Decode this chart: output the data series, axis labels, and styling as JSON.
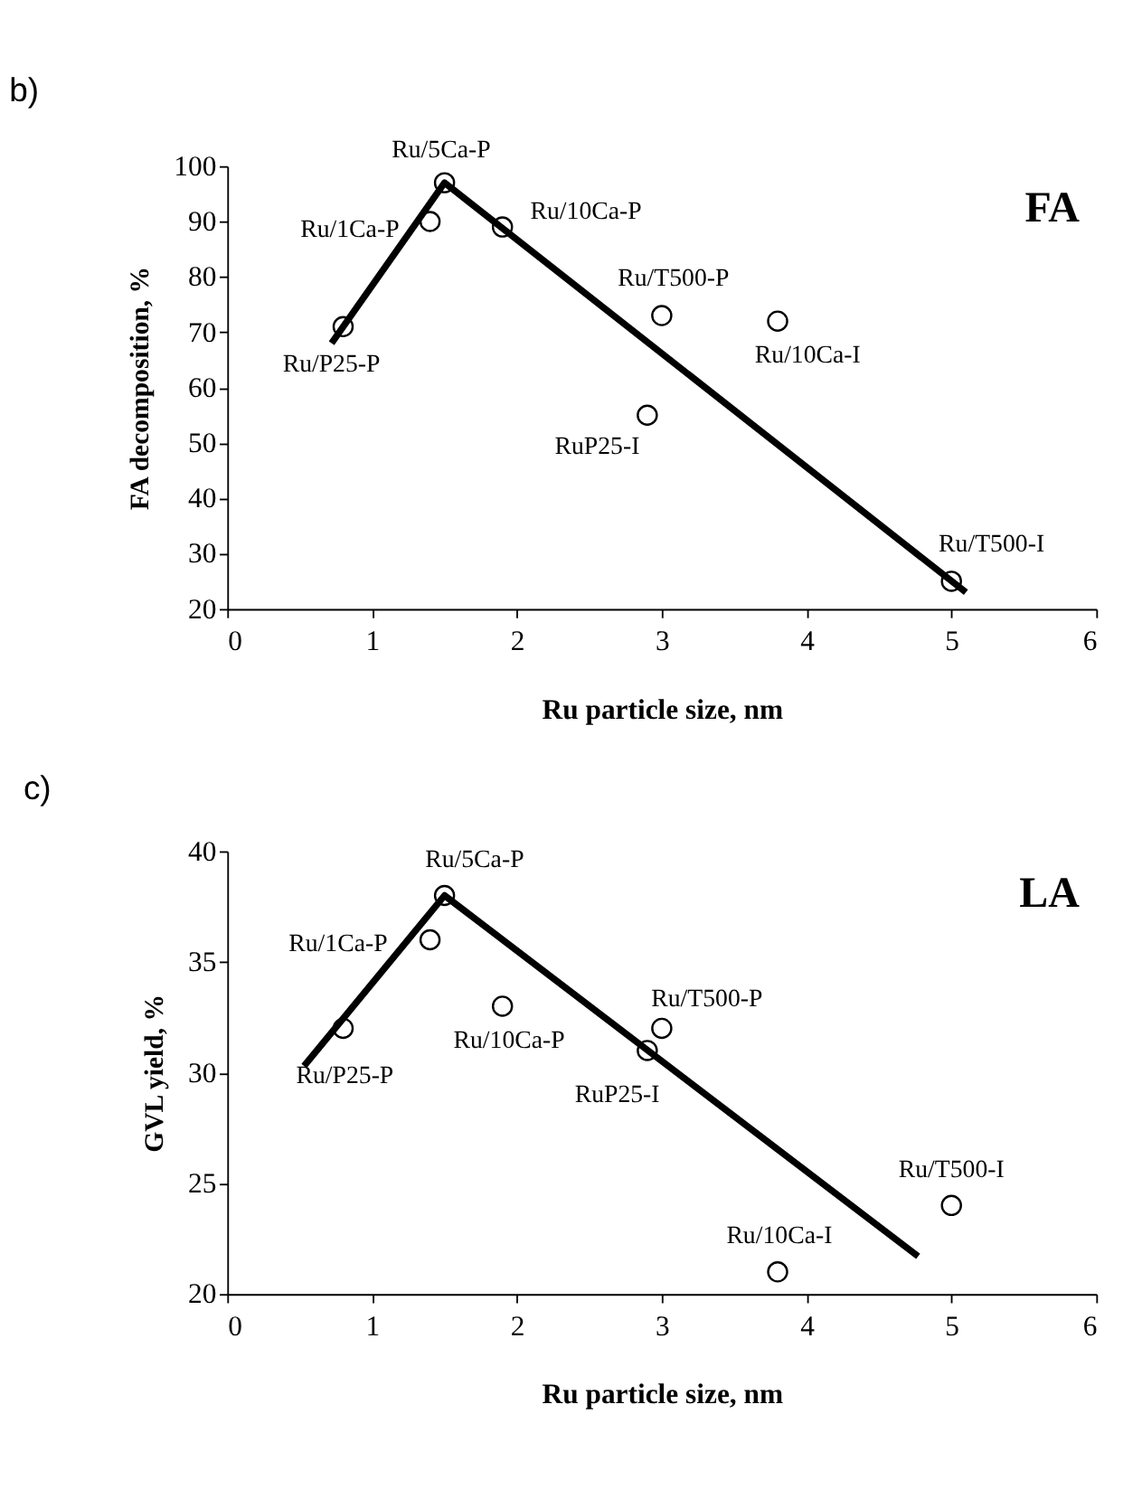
{
  "chart_data": [
    {
      "type": "scatter",
      "title": "b)",
      "xlabel": "Ru particle size, nm",
      "ylabel": "FA decomposition, %",
      "xlim": [
        0,
        6
      ],
      "xticks": [
        0,
        1,
        2,
        3,
        4,
        5,
        6
      ],
      "ylim": [
        20,
        100
      ],
      "yticks": [
        20,
        30,
        40,
        50,
        60,
        70,
        80,
        90,
        100
      ],
      "grid": false,
      "series": [
        {
          "type": "scatter",
          "marker": "circle",
          "color": "#000000",
          "x": [
            0.8,
            1.4,
            1.5,
            1.9,
            3.0,
            2.9,
            3.8,
            5.0
          ],
          "values": [
            71,
            90,
            97,
            89,
            73,
            55,
            72,
            25
          ]
        },
        {
          "type": "line",
          "marker": "none",
          "line_style": "solid",
          "color": "#000000",
          "x": [
            0.72,
            1.5,
            5.1
          ],
          "values": [
            68,
            97,
            23
          ]
        }
      ],
      "annotations": [
        "FA",
        {
          "text": "Ru/P25-P",
          "x": 0.8,
          "y": 71
        },
        {
          "text": "Ru/1Ca-P",
          "x": 1.4,
          "y": 90
        },
        {
          "text": "Ru/5Ca-P",
          "x": 1.5,
          "y": 97
        },
        {
          "text": "Ru/10Ca-P",
          "x": 1.9,
          "y": 89
        },
        {
          "text": "Ru/T500-P",
          "x": 3.0,
          "y": 73
        },
        {
          "text": "RuP25-I",
          "x": 2.9,
          "y": 55
        },
        {
          "text": "Ru/10Ca-I",
          "x": 3.8,
          "y": 72
        },
        {
          "text": "Ru/T500-I",
          "x": 5.0,
          "y": 25
        }
      ]
    },
    {
      "type": "scatter",
      "title": "c)",
      "xlabel": "Ru particle size, nm",
      "ylabel": "GVL yield, %",
      "xlim": [
        0,
        6
      ],
      "xticks": [
        0,
        1,
        2,
        3,
        4,
        5,
        6
      ],
      "ylim": [
        20,
        40
      ],
      "yticks": [
        20,
        25,
        30,
        35,
        40
      ],
      "grid": false,
      "series": [
        {
          "type": "scatter",
          "marker": "circle",
          "color": "#000000",
          "x": [
            0.8,
            1.4,
            1.5,
            1.9,
            3.0,
            2.9,
            3.8,
            5.0
          ],
          "values": [
            32,
            36,
            38,
            33,
            32,
            31,
            21,
            24
          ]
        },
        {
          "type": "line",
          "marker": "none",
          "line_style": "solid",
          "color": "#000000",
          "x": [
            0.53,
            1.5,
            4.77
          ],
          "values": [
            30.3,
            38,
            21.7
          ]
        }
      ],
      "annotations": [
        "LA",
        {
          "text": "Ru/P25-P",
          "x": 0.8,
          "y": 32
        },
        {
          "text": "Ru/1Ca-P",
          "x": 1.4,
          "y": 36
        },
        {
          "text": "Ru/5Ca-P",
          "x": 1.5,
          "y": 38
        },
        {
          "text": "Ru/10Ca-P",
          "x": 1.9,
          "y": 33
        },
        {
          "text": "Ru/T500-P",
          "x": 3.0,
          "y": 32
        },
        {
          "text": "RuP25-I",
          "x": 2.9,
          "y": 31
        },
        {
          "text": "Ru/10Ca-I",
          "x": 3.8,
          "y": 21
        },
        {
          "text": "Ru/T500-I",
          "x": 5.0,
          "y": 24
        }
      ]
    }
  ]
}
